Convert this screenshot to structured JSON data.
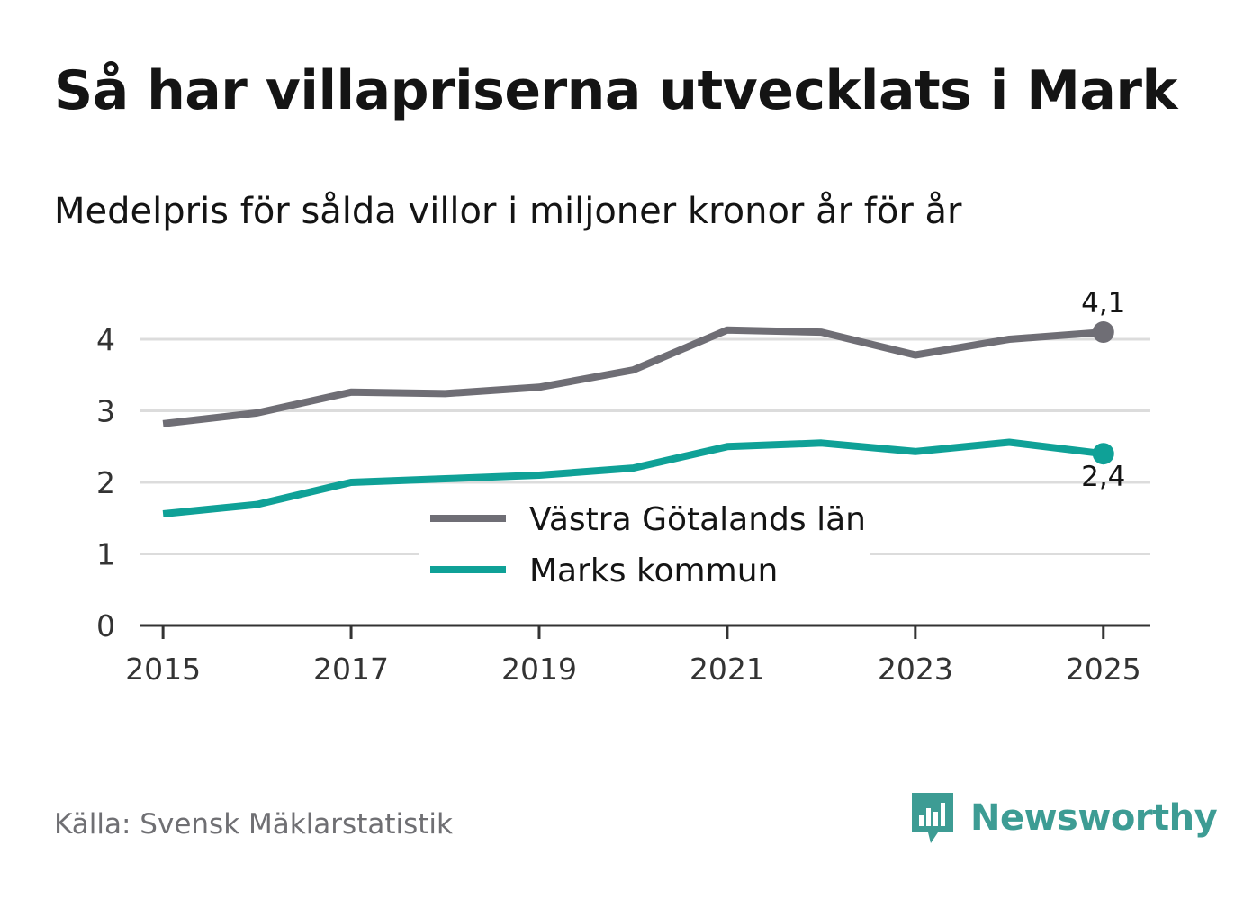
{
  "title": "Så har villapriserna utvecklats i Mark",
  "subtitle": "Medelpris för sålda villor i miljoner kronor år för år",
  "source": "Källa: Svensk Mäklarstatistik",
  "brand": {
    "name": "Newsworthy",
    "color": "#3d9c94"
  },
  "chart_data": {
    "type": "line",
    "title": "Så har villapriserna utvecklats i Mark",
    "subtitle": "Medelpris för sålda villor i miljoner kronor år för år",
    "xlabel": "",
    "ylabel": "",
    "x": [
      2015,
      2016,
      2017,
      2018,
      2019,
      2020,
      2021,
      2022,
      2023,
      2024,
      2025
    ],
    "x_ticks": [
      "2015",
      "2017",
      "2019",
      "2021",
      "2023",
      "2025"
    ],
    "y_ticks": [
      "0",
      "1",
      "2",
      "3",
      "4"
    ],
    "xlim": [
      2014.75,
      2025.5
    ],
    "ylim": [
      0,
      4.5
    ],
    "grid": true,
    "legend": "center",
    "series": [
      {
        "name": "Västra Götalands län",
        "color": "#6f6e75",
        "values": [
          2.82,
          2.97,
          3.26,
          3.24,
          3.33,
          3.57,
          4.13,
          4.1,
          3.78,
          4.0,
          4.1
        ],
        "end_label": "4,1"
      },
      {
        "name": "Marks kommun",
        "color": "#0fa197",
        "values": [
          1.56,
          1.69,
          2.0,
          2.05,
          2.1,
          2.2,
          2.5,
          2.55,
          2.43,
          2.56,
          2.4
        ],
        "end_label": "2,4"
      }
    ]
  }
}
